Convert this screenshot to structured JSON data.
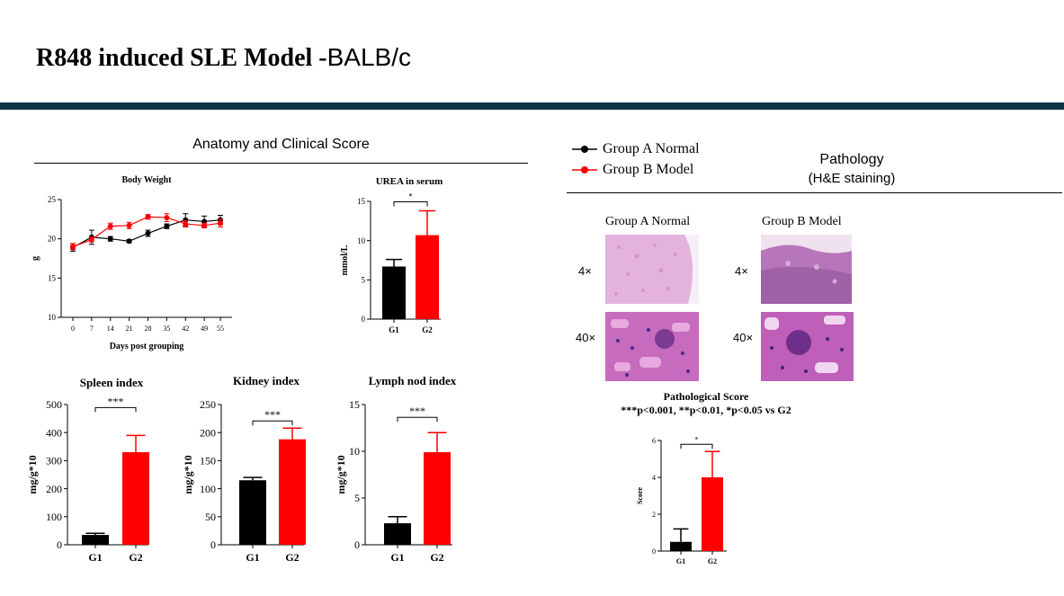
{
  "page": {
    "title_main": "R848 induced SLE Model -",
    "title_sub": "BALB/c",
    "header_bar_color": "#0e3445"
  },
  "left_section": {
    "title": "Anatomy and Clinical Score"
  },
  "right_section": {
    "title": "Pathology",
    "subtitle": "(H&E staining)",
    "legend": [
      {
        "label": "Group A Normal",
        "color": "#000000"
      },
      {
        "label": "Group B Model",
        "color": "#ff0000"
      }
    ],
    "image_grid": {
      "col_labels": [
        "Group A Normal",
        "Group B Model"
      ],
      "row_labels": [
        "4×",
        "40×"
      ]
    },
    "footnote": "***p<0.001, **p<0.01, *p<0.05 vs G2"
  },
  "chart_data": [
    {
      "id": "body-weight",
      "type": "line",
      "title": "Body Weight",
      "xlabel": "Days post grouping",
      "ylabel": "g",
      "x": [
        0,
        7,
        14,
        21,
        28,
        35,
        42,
        49,
        55
      ],
      "ylim": [
        10,
        25
      ],
      "yticks": [
        10,
        15,
        20,
        25
      ],
      "series": [
        {
          "name": "Group A Normal",
          "color": "#000000",
          "values": [
            18.9,
            20.2,
            20.0,
            19.7,
            20.7,
            21.6,
            22.4,
            22.2,
            22.4
          ],
          "errors": [
            0.5,
            0.9,
            0.3,
            0.2,
            0.4,
            0.3,
            0.8,
            0.7,
            0.6
          ]
        },
        {
          "name": "Group B Model",
          "color": "#ff0000",
          "values": [
            19.0,
            19.9,
            21.6,
            21.7,
            22.8,
            22.7,
            21.9,
            21.7,
            22.0
          ],
          "errors": [
            0.4,
            0.3,
            0.4,
            0.4,
            0.3,
            0.5,
            0.4,
            0.3,
            0.5
          ]
        }
      ]
    },
    {
      "id": "urea",
      "type": "bar",
      "title": "UREA in serum",
      "ylabel": "mmol/L",
      "categories": [
        "G1",
        "G2"
      ],
      "values": [
        6.7,
        10.7
      ],
      "errors": [
        0.9,
        3.1
      ],
      "colors": [
        "#000000",
        "#ff0000"
      ],
      "ylim": [
        0,
        15
      ],
      "yticks": [
        0,
        5,
        10,
        15
      ],
      "significance": "*"
    },
    {
      "id": "spleen",
      "type": "bar",
      "title": "Spleen index",
      "ylabel": "mg/g*10",
      "categories": [
        "G1",
        "G2"
      ],
      "values": [
        35,
        330
      ],
      "errors": [
        6,
        60
      ],
      "colors": [
        "#000000",
        "#ff0000"
      ],
      "ylim": [
        0,
        500
      ],
      "yticks": [
        0,
        100,
        200,
        300,
        400,
        500
      ],
      "significance": "***"
    },
    {
      "id": "kidney",
      "type": "bar",
      "title": "Kidney index",
      "ylabel": "mg/g*10",
      "categories": [
        "G1",
        "G2"
      ],
      "values": [
        115,
        188
      ],
      "errors": [
        5,
        20
      ],
      "colors": [
        "#000000",
        "#ff0000"
      ],
      "ylim": [
        0,
        250
      ],
      "yticks": [
        0,
        50,
        100,
        150,
        200,
        250
      ],
      "significance": "***"
    },
    {
      "id": "lymph",
      "type": "bar",
      "title": "Lymph nod index",
      "ylabel": "mg/g*10",
      "categories": [
        "G1",
        "G2"
      ],
      "values": [
        2.3,
        9.9
      ],
      "errors": [
        0.7,
        2.1
      ],
      "colors": [
        "#000000",
        "#ff0000"
      ],
      "ylim": [
        0,
        15
      ],
      "yticks": [
        0,
        5,
        10,
        15
      ],
      "significance": "***"
    },
    {
      "id": "path-score",
      "type": "bar",
      "title": "Pathological Score",
      "ylabel": "Score",
      "categories": [
        "G1",
        "G2"
      ],
      "values": [
        0.5,
        4.0
      ],
      "errors": [
        0.7,
        1.4
      ],
      "colors": [
        "#000000",
        "#ff0000"
      ],
      "ylim": [
        0,
        6
      ],
      "yticks": [
        0,
        2,
        4,
        6
      ],
      "significance": "*"
    }
  ]
}
